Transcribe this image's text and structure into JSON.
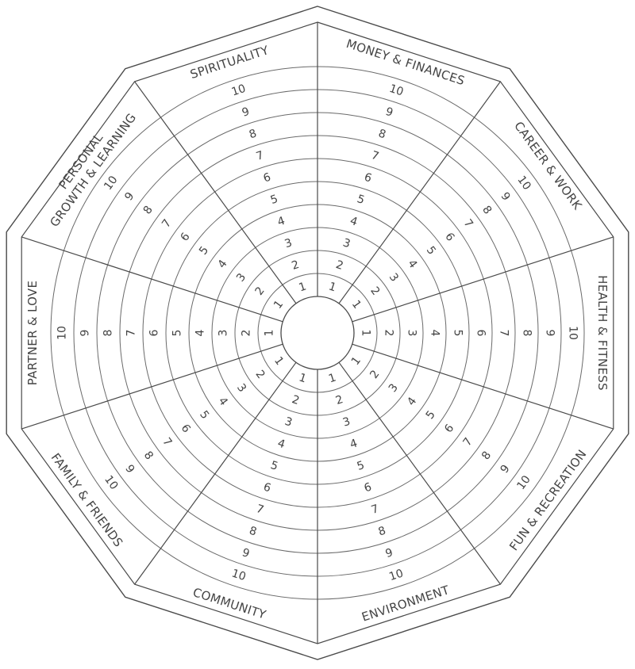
{
  "segments": [
    {
      "label_lines": [
        "MONEY & FINANCES"
      ]
    },
    {
      "label_lines": [
        "CAREER & WORK"
      ]
    },
    {
      "label_lines": [
        "HEALTH & FITNESS"
      ]
    },
    {
      "label_lines": [
        "FUN & RECREATION"
      ]
    },
    {
      "label_lines": [
        "ENVIRONMENT"
      ]
    },
    {
      "label_lines": [
        "COMMUNITY"
      ]
    },
    {
      "label_lines": [
        "FAMILY & FRIENDS"
      ]
    },
    {
      "label_lines": [
        "PARTNER & LOVE"
      ]
    },
    {
      "label_lines": [
        "PERSONAL",
        "GROWTH & LEARNING"
      ]
    },
    {
      "label_lines": [
        "SPIRITUALITY"
      ]
    }
  ],
  "scale": [
    "1",
    "2",
    "3",
    "4",
    "5",
    "6",
    "7",
    "8",
    "9",
    "10"
  ],
  "colors": {
    "line": "#4a4a4a",
    "ring": "#6a6a6a",
    "text": "#444444"
  }
}
